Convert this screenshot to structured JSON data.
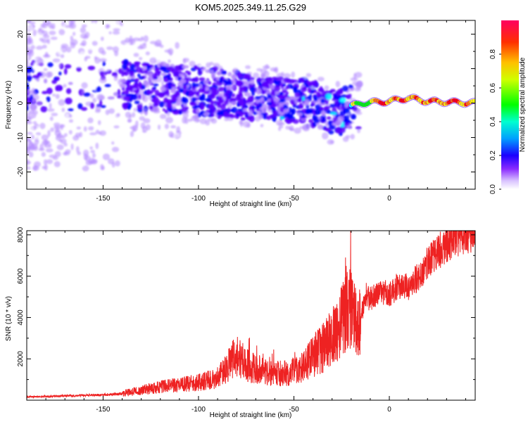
{
  "title": "KOM5.2025.349.11.25.G29",
  "chart_data": [
    {
      "type": "heatmap",
      "name": "spectrogram",
      "xlabel": "Height of straight line (km)",
      "ylabel": "Frequency (Hz)",
      "xlim": [
        -190,
        45
      ],
      "ylim": [
        -25,
        24
      ],
      "xticks": [
        -150,
        -100,
        -50,
        0
      ],
      "yticks": [
        -20,
        -10,
        0,
        10,
        20
      ],
      "colorbar": {
        "label": "Normalized spectral amplitude",
        "range": [
          0,
          1
        ],
        "ticks": [
          0.0,
          0.2,
          0.4,
          0.6,
          0.8
        ],
        "tick_labels": [
          "0.0",
          "0.2",
          "0.4",
          "0.6",
          "0.8"
        ],
        "colors": [
          "#ffffff",
          "#b48cff",
          "#5a00ff",
          "#0000ff",
          "#00ffff",
          "#00ff00",
          "#ffff00",
          "#ff8000",
          "#ff0000",
          "#ff0066"
        ]
      },
      "ridge": {
        "description_points_height_km": [
          -190,
          -150,
          -130,
          -110,
          -90,
          -70,
          -55,
          -40,
          -30,
          -20,
          -15,
          0,
          10,
          20,
          45
        ],
        "center_frequency_hz": [
          5,
          5,
          5,
          4,
          3,
          2,
          1,
          0,
          -3,
          -1,
          0,
          0.5,
          1.5,
          0.5,
          0
        ]
      }
    },
    {
      "type": "line",
      "name": "snr",
      "xlabel": "Height of straight line (km)",
      "ylabel": "SNR (10 * v/v)",
      "xlim": [
        -190,
        45
      ],
      "ylim": [
        0,
        8200
      ],
      "xticks": [
        -150,
        -100,
        -50,
        0
      ],
      "yticks": [
        2000,
        4000,
        6000,
        8000
      ],
      "color": "#ee2222",
      "series": [
        {
          "name": "SNR",
          "x": [
            -190,
            -170,
            -150,
            -140,
            -130,
            -120,
            -110,
            -100,
            -90,
            -85,
            -80,
            -75,
            -70,
            -65,
            -60,
            -55,
            -50,
            -45,
            -40,
            -35,
            -30,
            -25,
            -22,
            -20,
            -18,
            -16,
            -15,
            -12,
            -10,
            -5,
            0,
            5,
            10,
            15,
            20,
            25,
            30,
            35,
            40,
            45
          ],
          "values": [
            150,
            200,
            250,
            300,
            450,
            600,
            700,
            800,
            1000,
            1500,
            2000,
            1600,
            1400,
            1300,
            1200,
            1200,
            1300,
            1500,
            2000,
            2300,
            2800,
            3500,
            4500,
            4200,
            3500,
            3000,
            4000,
            5000,
            4800,
            5200,
            5000,
            5500,
            5400,
            5800,
            6500,
            7000,
            7400,
            7700,
            7950,
            7900
          ]
        }
      ]
    }
  ]
}
